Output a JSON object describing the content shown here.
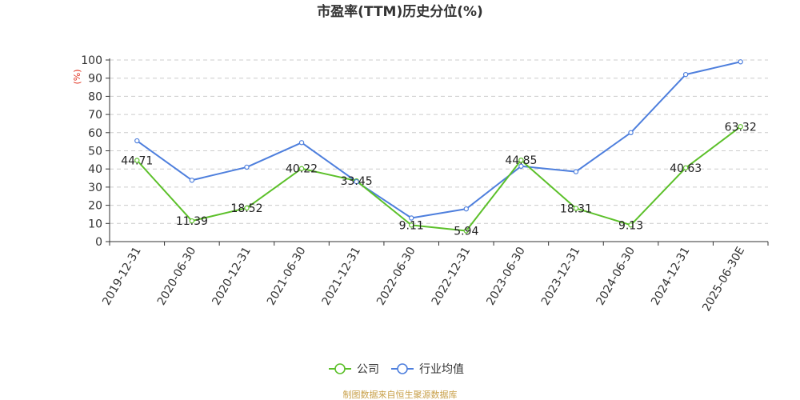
{
  "chart_data": {
    "type": "line",
    "title": "市盈率(TTM)历史分位(%)",
    "ylabel": "(%)",
    "xlabel": "",
    "ylim": [
      0,
      100
    ],
    "yticks": [
      0,
      10,
      20,
      30,
      40,
      50,
      60,
      70,
      80,
      90,
      100
    ],
    "grid": true,
    "legend_position": "bottom",
    "categories": [
      "2019-12-31",
      "2020-06-30",
      "2020-12-31",
      "2021-06-30",
      "2021-12-31",
      "2022-06-30",
      "2022-12-31",
      "2023-06-30",
      "2023-12-31",
      "2024-06-30",
      "2024-12-31",
      "2025-06-30E"
    ],
    "series": [
      {
        "name": "公司",
        "color": "#5cc02a",
        "values": [
          44.71,
          11.39,
          18.52,
          40.22,
          33.45,
          9.11,
          5.94,
          44.85,
          18.31,
          9.13,
          40.63,
          63.32
        ],
        "labels": [
          "44.71",
          "11.39",
          "18.52",
          "40.22",
          "33.45",
          "9.11",
          "5.94",
          "44.85",
          "18.31",
          "9.13",
          "40.63",
          "63.32"
        ]
      },
      {
        "name": "行业均值",
        "color": "#4e7fdd",
        "values": [
          55.5,
          33.8,
          41.0,
          54.5,
          33.0,
          13.0,
          18.0,
          41.5,
          38.5,
          60.0,
          92.0,
          99.0
        ]
      }
    ],
    "source": "制图数据来自恒生聚源数据库"
  }
}
